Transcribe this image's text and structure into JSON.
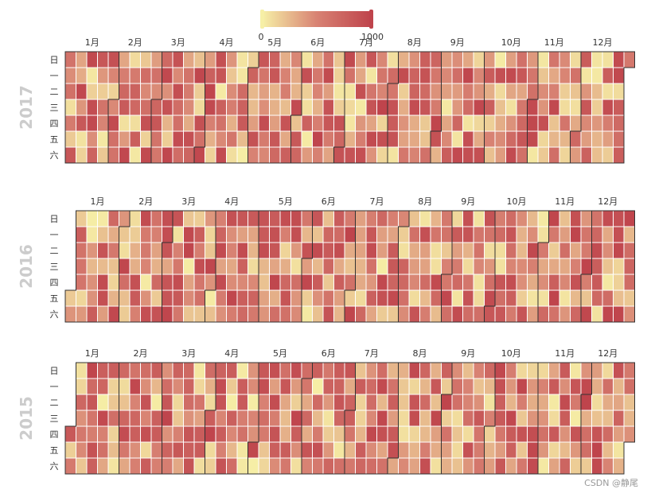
{
  "chart_data": {
    "type": "heatmap",
    "subtype": "calendar",
    "years": [
      "2017",
      "2016",
      "2015"
    ],
    "month_labels": [
      "1月",
      "2月",
      "3月",
      "4月",
      "5月",
      "6月",
      "7月",
      "8月",
      "9月",
      "10月",
      "11月",
      "12月"
    ],
    "day_labels": [
      "日",
      "一",
      "二",
      "三",
      "四",
      "五",
      "六"
    ],
    "visual_map": {
      "min": 0,
      "max": 1000,
      "min_label": "0",
      "max_label": "1000",
      "colors": [
        "#f6efa6",
        "#d88273",
        "#bf444c"
      ]
    },
    "value_note": "Daily values are random in the range 0–1000; cell colors only, no per-day values printed",
    "grid": false,
    "legend_position": "top-center"
  },
  "colors": {
    "low": "#f6efa6",
    "mid": "#d88273",
    "high": "#bf444c",
    "year_label": "#cccccc",
    "text": "#333333",
    "border": "#333333"
  },
  "watermark": "CSDN @静尾"
}
